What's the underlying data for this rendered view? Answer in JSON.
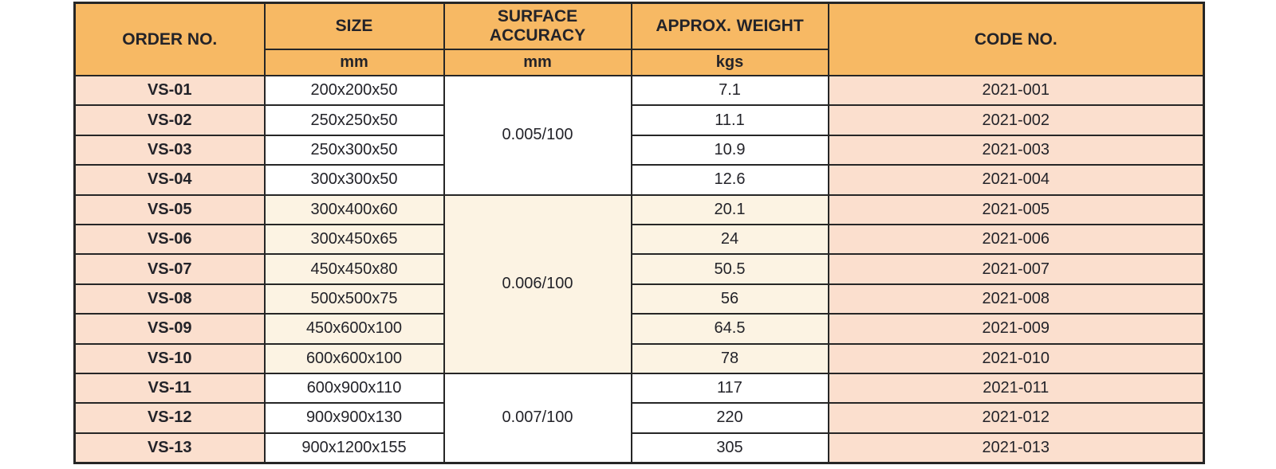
{
  "table": {
    "columns": [
      {
        "key": "order_no",
        "label": "ORDER NO."
      },
      {
        "key": "size",
        "label": "SIZE",
        "unit": "mm"
      },
      {
        "key": "accuracy",
        "label": "SURFACE ACCURACY",
        "unit": "mm"
      },
      {
        "key": "weight",
        "label": "APPROX. WEIGHT",
        "unit": "kgs"
      },
      {
        "key": "code",
        "label": "CODE NO."
      }
    ],
    "accuracy_groups": [
      {
        "value": "0.005/100",
        "row_count": 4,
        "shade": "white"
      },
      {
        "value": "0.006/100",
        "row_count": 6,
        "shade": "cream"
      },
      {
        "value": "0.007/100",
        "row_count": 3,
        "shade": "white"
      }
    ],
    "rows": [
      {
        "order_no": "VS-01",
        "size": "200x200x50",
        "weight": "7.1",
        "code": "2021-001"
      },
      {
        "order_no": "VS-02",
        "size": "250x250x50",
        "weight": "11.1",
        "code": "2021-002"
      },
      {
        "order_no": "VS-03",
        "size": "250x300x50",
        "weight": "10.9",
        "code": "2021-003"
      },
      {
        "order_no": "VS-04",
        "size": "300x300x50",
        "weight": "12.6",
        "code": "2021-004"
      },
      {
        "order_no": "VS-05",
        "size": "300x400x60",
        "weight": "20.1",
        "code": "2021-005"
      },
      {
        "order_no": "VS-06",
        "size": "300x450x65",
        "weight": "24",
        "code": "2021-006"
      },
      {
        "order_no": "VS-07",
        "size": "450x450x80",
        "weight": "50.5",
        "code": "2021-007"
      },
      {
        "order_no": "VS-08",
        "size": "500x500x75",
        "weight": "56",
        "code": "2021-008"
      },
      {
        "order_no": "VS-09",
        "size": "450x600x100",
        "weight": "64.5",
        "code": "2021-009"
      },
      {
        "order_no": "VS-10",
        "size": "600x600x100",
        "weight": "78",
        "code": "2021-010"
      },
      {
        "order_no": "VS-11",
        "size": "600x900x110",
        "weight": "117",
        "code": "2021-011"
      },
      {
        "order_no": "VS-12",
        "size": "900x900x130",
        "weight": "220",
        "code": "2021-012"
      },
      {
        "order_no": "VS-13",
        "size": "900x1200x155",
        "weight": "305",
        "code": "2021-013"
      }
    ],
    "colors": {
      "header_bg": "#f7b964",
      "peach_bg": "#fbdfce",
      "cream_bg": "#fcf3e3",
      "white_bg": "#ffffff",
      "border": "#262626",
      "text": "#232329",
      "header_text": "#18181f"
    }
  }
}
